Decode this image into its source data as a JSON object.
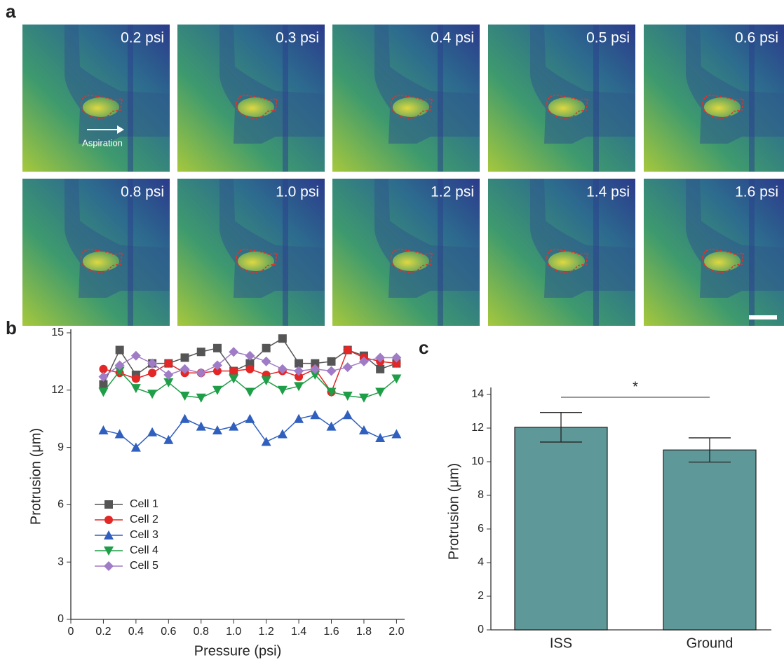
{
  "panel_a": {
    "label": "a",
    "annotation": "Aspiration",
    "images": [
      {
        "label": "0.2 psi"
      },
      {
        "label": "0.3 psi"
      },
      {
        "label": "0.4 psi"
      },
      {
        "label": "0.5 psi"
      },
      {
        "label": "0.6 psi"
      },
      {
        "label": "0.8 psi"
      },
      {
        "label": "1.0 psi"
      },
      {
        "label": "1.2 psi"
      },
      {
        "label": "1.4 psi"
      },
      {
        "label": "1.6 psi"
      }
    ]
  },
  "chart_data": [
    {
      "type": "line",
      "panel_label": "b",
      "xlabel": "Pressure (psi)",
      "ylabel": "Protrusion (μm)",
      "x": [
        0.2,
        0.3,
        0.4,
        0.5,
        0.6,
        0.7,
        0.8,
        0.9,
        1.0,
        1.1,
        1.2,
        1.3,
        1.4,
        1.5,
        1.6,
        1.7,
        1.8,
        1.9,
        2.0
      ],
      "series": [
        {
          "name": "Cell 1",
          "color": "#555555",
          "marker": "square",
          "values": [
            12.3,
            14.1,
            12.8,
            13.4,
            13.4,
            13.7,
            14.0,
            14.2,
            13.0,
            13.4,
            14.2,
            14.7,
            13.4,
            13.4,
            13.5,
            14.1,
            13.8,
            13.1,
            13.4
          ]
        },
        {
          "name": "Cell 2",
          "color": "#e32626",
          "marker": "circle",
          "values": [
            13.1,
            12.9,
            12.6,
            12.9,
            13.4,
            12.9,
            12.9,
            13.0,
            13.0,
            13.1,
            12.8,
            13.0,
            12.7,
            13.1,
            11.9,
            14.1,
            13.7,
            13.5,
            13.4
          ]
        },
        {
          "name": "Cell 3",
          "color": "#2f5fbf",
          "marker": "triangle-up",
          "values": [
            9.9,
            9.7,
            9.0,
            9.8,
            9.4,
            10.5,
            10.1,
            9.9,
            10.1,
            10.5,
            9.3,
            9.7,
            10.5,
            10.7,
            10.1,
            10.7,
            9.9,
            9.5,
            9.7
          ]
        },
        {
          "name": "Cell 4",
          "color": "#1f9e48",
          "marker": "triangle-down",
          "values": [
            11.9,
            13.0,
            12.1,
            11.8,
            12.4,
            11.7,
            11.6,
            12.0,
            12.6,
            11.9,
            12.5,
            12.0,
            12.2,
            12.8,
            11.9,
            11.7,
            11.6,
            11.9,
            12.6
          ]
        },
        {
          "name": "Cell 5",
          "color": "#a07cc7",
          "marker": "diamond",
          "values": [
            12.7,
            13.3,
            13.8,
            13.4,
            12.8,
            13.1,
            12.9,
            13.3,
            14.0,
            13.8,
            13.5,
            13.1,
            13.0,
            13.1,
            13.0,
            13.2,
            13.5,
            13.7,
            13.7
          ]
        }
      ],
      "xlim": [
        0,
        2.05
      ],
      "xticks": [
        0,
        0.2,
        0.4,
        0.6,
        0.8,
        {
          "value": 1,
          "label": "1.0"
        },
        1.2,
        1.4,
        1.6,
        1.8,
        {
          "value": 2,
          "label": "2.0"
        }
      ],
      "ylim": [
        0,
        15
      ],
      "yticks": [
        0,
        3,
        6,
        9,
        12,
        15
      ],
      "legend": "lower left"
    },
    {
      "type": "bar",
      "panel_label": "c",
      "ylabel": "Protrusion (μm)",
      "categories": [
        "ISS",
        "Ground"
      ],
      "values": [
        12.05,
        10.7
      ],
      "errors": [
        0.88,
        0.72
      ],
      "color": "#5f9898",
      "ylim": [
        0,
        14
      ],
      "yticks": [
        0,
        2,
        4,
        6,
        8,
        10,
        12,
        14
      ],
      "annotation": "*"
    }
  ]
}
